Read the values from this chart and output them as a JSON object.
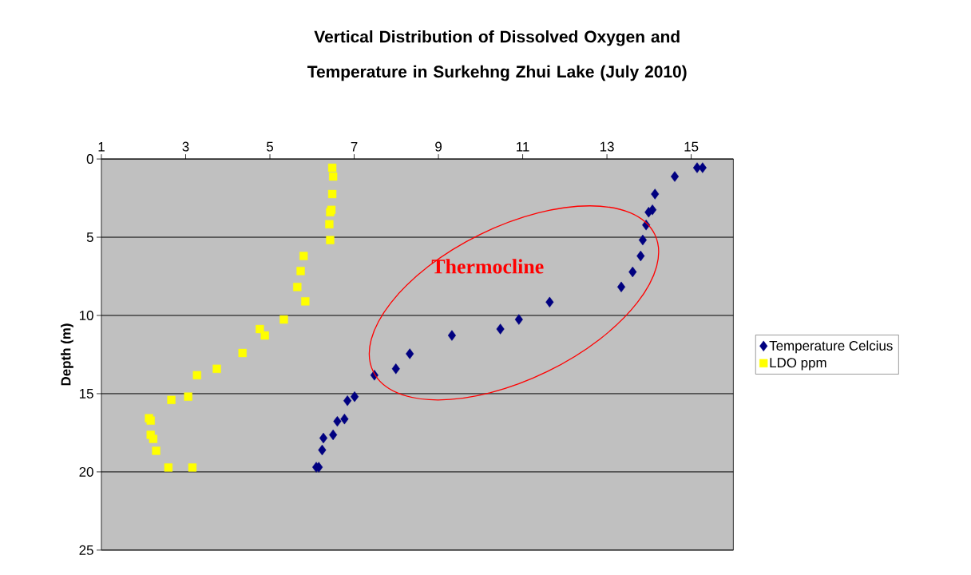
{
  "chart_data": {
    "type": "scatter",
    "title": "Vertical Distribution of Dissolved Oxygen and Temperature in Surkehng Zhui Lake (July 2010)",
    "ylabel": "Depth (m)",
    "xlim": [
      1,
      16
    ],
    "xticks": [
      1,
      3,
      5,
      7,
      9,
      11,
      13,
      15
    ],
    "ylim": [
      25,
      0
    ],
    "yticks": [
      0,
      5,
      10,
      15,
      20,
      25
    ],
    "grid": "y",
    "legend": "right",
    "annotations": [
      "Thermocline"
    ],
    "series": [
      {
        "name": "Temperature Celcius",
        "color": "#000080",
        "marker": "diamond",
        "x": [
          15.14,
          15.27,
          14.61,
          14.14,
          14.08,
          13.99,
          13.93,
          13.85,
          13.8,
          13.61,
          13.34,
          11.64,
          10.91,
          10.47,
          9.32,
          8.32,
          7.99,
          7.48,
          7.01,
          6.84,
          6.77,
          6.6,
          6.5,
          6.27,
          6.24,
          6.16,
          6.1
        ],
        "values": [
          0.56,
          0.56,
          1.12,
          2.24,
          3.25,
          3.4,
          4.22,
          5.18,
          6.2,
          7.22,
          8.18,
          9.15,
          10.26,
          10.87,
          11.28,
          12.45,
          13.41,
          13.82,
          15.19,
          15.45,
          16.62,
          16.77,
          17.63,
          17.84,
          18.6,
          19.7,
          19.7
        ]
      },
      {
        "name": "LDO ppm",
        "color": "#ffff00",
        "marker": "square",
        "x": [
          6.48,
          6.5,
          6.48,
          6.46,
          6.43,
          6.41,
          6.43,
          5.8,
          5.73,
          5.65,
          5.84,
          5.33,
          4.76,
          4.88,
          4.35,
          3.74,
          3.27,
          3.06,
          2.66,
          2.13,
          2.17,
          2.17,
          2.23,
          2.3,
          2.59,
          3.16
        ],
        "values": [
          0.56,
          1.12,
          2.24,
          3.25,
          3.4,
          4.17,
          5.18,
          6.2,
          7.16,
          8.18,
          9.1,
          10.26,
          10.87,
          11.28,
          12.4,
          13.41,
          13.82,
          15.19,
          15.4,
          16.57,
          16.72,
          17.63,
          17.89,
          18.65,
          19.72,
          19.72
        ]
      }
    ]
  }
}
